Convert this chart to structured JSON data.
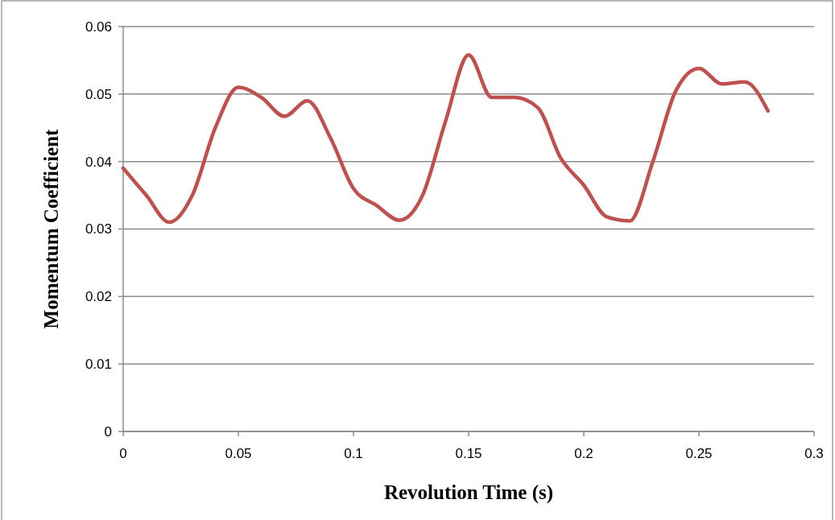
{
  "chart_data": {
    "type": "line",
    "xlabel": "Revolution Time (s)",
    "ylabel": "Momentum Coefficient",
    "x": [
      0,
      0.01,
      0.02,
      0.03,
      0.04,
      0.05,
      0.06,
      0.07,
      0.08,
      0.09,
      0.1,
      0.11,
      0.12,
      0.13,
      0.14,
      0.15,
      0.16,
      0.17,
      0.18,
      0.19,
      0.2,
      0.21,
      0.22,
      0.23,
      0.24,
      0.25,
      0.26,
      0.27,
      0.28
    ],
    "series": [
      {
        "color": "#c0504d",
        "values": [
          0.039,
          0.035,
          0.031,
          0.035,
          0.045,
          0.051,
          0.0495,
          0.0467,
          0.049,
          0.0435,
          0.036,
          0.0335,
          0.0313,
          0.035,
          0.046,
          0.0558,
          0.0495,
          0.0495,
          0.048,
          0.0405,
          0.0365,
          0.0318,
          0.0312,
          0.04,
          0.0505,
          0.0538,
          0.0515,
          0.0518,
          0.0475
        ]
      }
    ],
    "xlim": [
      0,
      0.3
    ],
    "xticks": [
      0,
      0.05,
      0.1,
      0.15,
      0.2,
      0.25,
      0.3
    ],
    "ylim": [
      0,
      0.06
    ],
    "yticks": [
      0,
      0.01,
      0.02,
      0.03,
      0.04,
      0.05,
      0.06
    ],
    "grid": "y",
    "marker": "none",
    "line_style": "solid"
  }
}
